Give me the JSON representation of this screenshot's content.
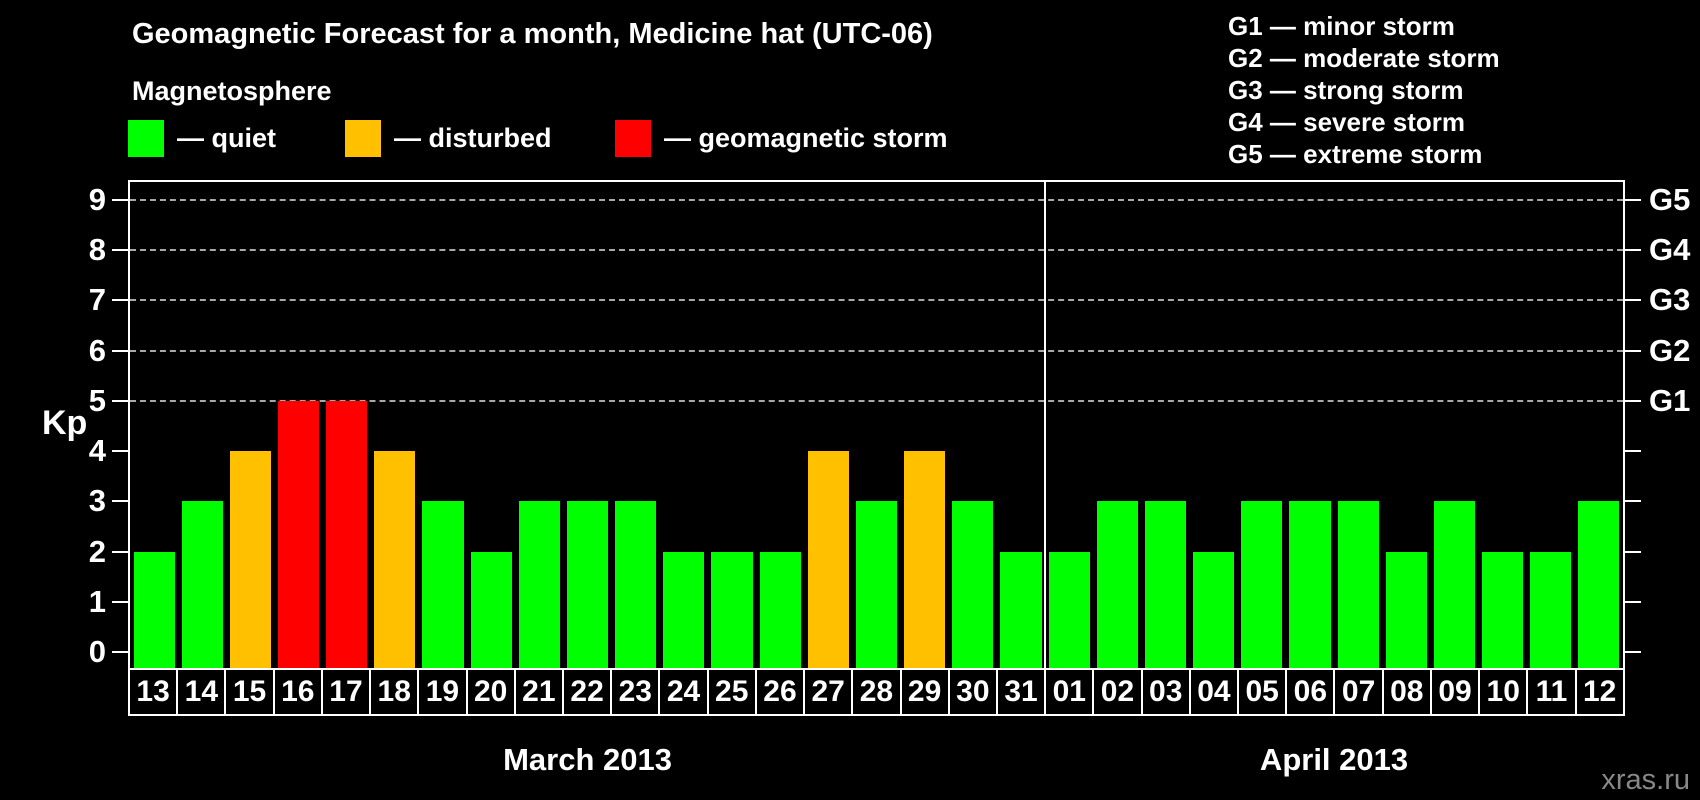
{
  "chart_data": {
    "type": "bar",
    "title": "Geomagnetic Forecast for a month, Medicine hat (UTC-06)",
    "subtitle": "Magnetosphere",
    "ylabel": "Kp",
    "ylim": [
      0,
      9
    ],
    "yticks": [
      "0",
      "1",
      "2",
      "3",
      "4",
      "5",
      "6",
      "7",
      "8",
      "9"
    ],
    "grid": "dashed horizontal lines at Kp 5-9 only",
    "gridlines_at_kp": [
      5,
      6,
      7,
      8,
      9
    ],
    "right_axis_labels": [
      {
        "label": "G1",
        "kp": 5
      },
      {
        "label": "G2",
        "kp": 6
      },
      {
        "label": "G3",
        "kp": 7
      },
      {
        "label": "G4",
        "kp": 8
      },
      {
        "label": "G5",
        "kp": 9
      }
    ],
    "legend": {
      "items": [
        {
          "key": "quiet",
          "color": "#00ff00",
          "label": "— quiet"
        },
        {
          "key": "disturbed",
          "color": "#ffc000",
          "label": "— disturbed"
        },
        {
          "key": "storm",
          "color": "#ff0000",
          "label": "— geomagnetic storm"
        }
      ],
      "kp_color_rule": {
        "quiet_max_kp": 3,
        "disturbed_max_kp": 4
      }
    },
    "g_scale_legend": [
      "G1 — minor storm",
      "G2 — moderate storm",
      "G3 — strong storm",
      "G4 — severe storm",
      "G5 — extreme storm"
    ],
    "months": [
      {
        "label": "March 2013",
        "days": [
          "13",
          "14",
          "15",
          "16",
          "17",
          "18",
          "19",
          "20",
          "21",
          "22",
          "23",
          "24",
          "25",
          "26",
          "27",
          "28",
          "29",
          "30",
          "31"
        ],
        "kp_values": [
          2,
          3,
          4,
          5,
          5,
          4,
          3,
          2,
          3,
          3,
          3,
          2,
          2,
          2,
          4,
          3,
          4,
          3,
          2
        ]
      },
      {
        "label": "April 2013",
        "days": [
          "01",
          "02",
          "03",
          "04",
          "05",
          "06",
          "07",
          "08",
          "09",
          "10",
          "11",
          "12"
        ],
        "kp_values": [
          2,
          3,
          3,
          2,
          3,
          3,
          3,
          2,
          3,
          2,
          2,
          3
        ]
      }
    ],
    "watermark": "xras.ru"
  }
}
